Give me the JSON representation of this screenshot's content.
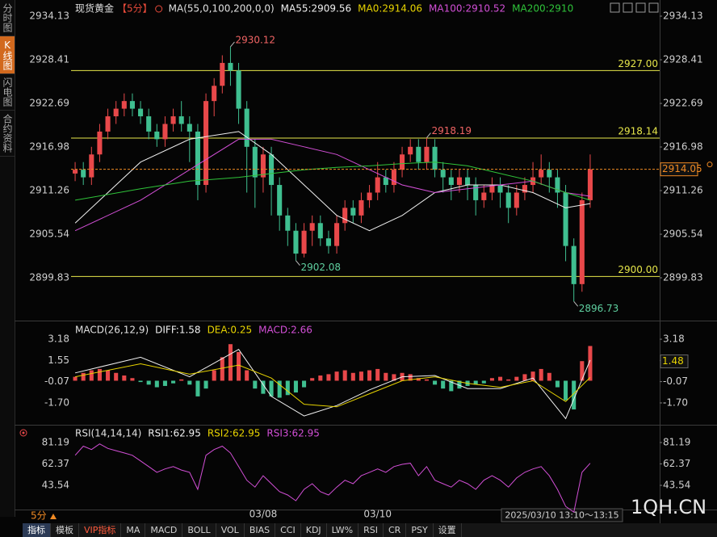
{
  "sidebar": [
    "分时图",
    "K线图",
    "闪电图",
    "合约资料"
  ],
  "toolbar": [
    "指标",
    "模板",
    "VIP指标",
    "MA",
    "MACD",
    "BOLL",
    "VOL",
    "BIAS",
    "CCI",
    "KDJ",
    "LW%",
    "RSI",
    "CR",
    "PSY",
    "设置"
  ],
  "period": "5分",
  "time_range": "2025/03/10 13:10～13:15",
  "watermark": "1QH.CN",
  "chart_data": [
    {
      "type": "candlestick",
      "title": "现货黄金",
      "period_tag": "【5分】",
      "indicator": "MA(55,0,100,200,0,0)",
      "header_items": [
        {
          "label": "MA0:2914.06",
          "color": "#e8d400"
        }
      ],
      "xlim": [
        -0.5,
        71.5
      ],
      "categories": [
        null,
        null,
        null,
        null,
        null,
        null,
        null,
        null,
        null,
        null,
        null,
        null,
        null,
        null,
        null,
        null,
        null,
        null,
        null,
        null,
        null,
        null,
        null,
        "03/08",
        null,
        null,
        null,
        null,
        null,
        null,
        null,
        null,
        null,
        null,
        null,
        null,
        null,
        "03/10",
        null,
        null,
        null,
        null,
        null,
        null,
        null,
        null,
        null,
        null,
        null,
        null,
        null,
        null,
        null,
        null,
        null,
        null,
        null,
        null,
        null,
        null,
        null,
        null,
        null,
        null
      ],
      "open": [
        2913.5,
        2914,
        2913,
        2916,
        2919,
        2921,
        2922,
        2923,
        2922,
        2921,
        2919,
        2918,
        2920,
        2921,
        2920,
        2919,
        2912,
        2923,
        2925,
        2928,
        2927,
        2922,
        2917,
        2913,
        2916,
        2912,
        2908,
        2906,
        2903,
        2906,
        2907,
        2905,
        2904,
        2907,
        2909,
        2908,
        2910,
        2911,
        2913,
        2912,
        2914,
        2916,
        2917,
        2915,
        2917,
        2914,
        2913,
        2912,
        2913,
        2912,
        2910,
        2911,
        2912,
        2911,
        2909,
        2911,
        2912,
        2913,
        2914,
        2913,
        2911,
        2904,
        2899,
        2910
      ],
      "high": [
        2915,
        2915,
        2917,
        2920,
        2922,
        2923,
        2924,
        2924,
        2923,
        2922,
        2920,
        2921,
        2922,
        2923,
        2921,
        2920,
        2924,
        2926,
        2929,
        2930.12,
        2928,
        2923,
        2918,
        2917,
        2917,
        2913,
        2909,
        2907,
        2907,
        2908,
        2908,
        2906,
        2908,
        2910,
        2910,
        2911,
        2912,
        2915,
        2914,
        2915,
        2917,
        2918,
        2918,
        2918.19,
        2918,
        2915,
        2914,
        2914,
        2914,
        2913,
        2912,
        2913,
        2913,
        2912,
        2912,
        2913,
        2915,
        2916,
        2915,
        2914,
        2912,
        2905,
        2911,
        2916
      ],
      "low": [
        2912.5,
        2912,
        2912,
        2915,
        2918,
        2920,
        2921,
        2921,
        2920,
        2918,
        2917,
        2917,
        2919,
        2919,
        2915,
        2910,
        2911,
        2921,
        2924,
        2925,
        2920,
        2911,
        2909,
        2911,
        2908,
        2906,
        2904,
        2902.08,
        2902.5,
        2904,
        2904,
        2903,
        2903,
        2906,
        2907,
        2907,
        2909,
        2910,
        2911,
        2911,
        2913,
        2915,
        2914,
        2914,
        2913,
        2911,
        2910,
        2911,
        2910,
        2908,
        2909,
        2910,
        2909,
        2907,
        2908,
        2910,
        2911,
        2912,
        2911,
        2909,
        2902,
        2896.73,
        2898,
        2909
      ],
      "close": [
        2914,
        2913,
        2916,
        2919,
        2921,
        2922,
        2923,
        2922,
        2921,
        2919,
        2918,
        2920,
        2921,
        2920,
        2919,
        2912,
        2923,
        2925,
        2928,
        2927,
        2922,
        2917,
        2913,
        2916,
        2912,
        2908,
        2906,
        2903,
        2906,
        2907,
        2905,
        2904,
        2907,
        2909,
        2908,
        2910,
        2911,
        2913,
        2912,
        2914,
        2916,
        2917,
        2915,
        2917,
        2914,
        2913,
        2912,
        2913,
        2912,
        2910,
        2911,
        2912,
        2911,
        2909,
        2911,
        2912,
        2913,
        2914,
        2913,
        2911,
        2904,
        2899,
        2910,
        2914.05
      ],
      "up_color": "#e8484a",
      "down_color": "#3fbf90",
      "ylim": [
        2894.43,
        2935.19
      ],
      "yticks": [
        2934.13,
        2928.41,
        2922.69,
        2916.98,
        2911.26,
        2905.54,
        2899.83
      ],
      "series": [
        {
          "name": "MA55:2909.56",
          "color": "#f0f0f0",
          "x": [
            0,
            8,
            14,
            20,
            24,
            28,
            32,
            36,
            40,
            44,
            48,
            52,
            56,
            60,
            63
          ],
          "values": [
            2907,
            2915,
            2918,
            2919,
            2916,
            2912,
            2908,
            2906,
            2908,
            2911,
            2912,
            2912,
            2911,
            2909,
            2909.56
          ]
        },
        {
          "name": "MA100:2910.52",
          "color": "#d24fd6",
          "x": [
            0,
            8,
            14,
            20,
            24,
            28,
            32,
            36,
            40,
            44,
            48,
            52,
            56,
            60,
            63
          ],
          "values": [
            2906,
            2910,
            2914,
            2918,
            2918,
            2917,
            2916,
            2914,
            2912,
            2911,
            2911.5,
            2912,
            2912.5,
            2911,
            2910.52
          ]
        },
        {
          "name": "MA200:2910",
          "color": "#2fc43a",
          "x": [
            0,
            8,
            14,
            20,
            24,
            28,
            32,
            36,
            40,
            44,
            48,
            52,
            56,
            60,
            63
          ],
          "values": [
            2910,
            2911.5,
            2912.5,
            2913,
            2913.5,
            2914,
            2914.3,
            2914.5,
            2914.8,
            2915,
            2914.5,
            2913.5,
            2912.5,
            2911,
            2910
          ]
        }
      ],
      "levels": [
        {
          "value": 2927,
          "label": "2927.00"
        },
        2918.14,
        {
          "value": 2900,
          "label": "2900.00"
        }
      ],
      "level_color": "#e6e64a",
      "last_price_color": "#f08a24"
    },
    {
      "type": "macd",
      "title": "MACD(26,12,9)",
      "xlim": [
        -0.5,
        71.5
      ],
      "ylim": [
        -3.31,
        4.42
      ],
      "yticks": [
        3.18,
        1.55,
        -0.07,
        {
          "value": -1.7,
          "label": "-1.70"
        }
      ],
      "histogram": {
        "name": "MACD:2.66",
        "color": "#d24fd6",
        "up_color": "#e8484a",
        "down_color": "#3fbf90",
        "values": [
          0.3,
          0.6,
          0.8,
          0.9,
          0.8,
          0.6,
          0.4,
          0.2,
          -0.1,
          -0.3,
          -0.5,
          -0.4,
          -0.2,
          0.1,
          -0.3,
          -1.2,
          -0.6,
          0.8,
          1.8,
          2.8,
          2.2,
          0.8,
          -0.6,
          -1.0,
          -1.2,
          -1.3,
          -1.1,
          -0.9,
          -0.5,
          0.2,
          0.4,
          0.5,
          0.7,
          0.8,
          0.6,
          0.7,
          0.8,
          0.9,
          0.6,
          0.5,
          0.6,
          0.5,
          0.2,
          0.1,
          -0.3,
          -0.6,
          -0.8,
          -0.6,
          -0.4,
          -0.3,
          -0.2,
          0.2,
          0.3,
          0.1,
          0.3,
          0.5,
          0.7,
          0.9,
          0.6,
          -0.5,
          -1.5,
          -2.2,
          1.5,
          2.66
        ]
      },
      "series": [
        {
          "name": "DIFF:1.58",
          "color": "#f0f0f0",
          "x": [
            0,
            8,
            14,
            20,
            24,
            28,
            32,
            36,
            40,
            44,
            48,
            52,
            56,
            60,
            63
          ],
          "values": [
            0.6,
            1.8,
            0.3,
            2.4,
            -1.2,
            -2.7,
            -1.9,
            -0.7,
            0.3,
            0.4,
            -0.6,
            -0.6,
            0.2,
            -2.9,
            1.58
          ]
        },
        {
          "name": "DEA:0.25",
          "color": "#e8d400",
          "x": [
            0,
            8,
            14,
            20,
            24,
            28,
            32,
            36,
            40,
            44,
            48,
            52,
            56,
            60,
            63
          ],
          "values": [
            0.3,
            1.3,
            0.5,
            1.2,
            0.2,
            -1.8,
            -2.0,
            -1.0,
            0.0,
            0.3,
            -0.2,
            -0.5,
            0.0,
            -1.6,
            0.25
          ]
        }
      ],
      "cursor_value": 1.48
    },
    {
      "type": "line",
      "title": "RSI(14,14,14)",
      "xlim": [
        -0.5,
        71.5
      ],
      "ylim": [
        22.96,
        95.4
      ],
      "yticks": [
        81.19,
        62.37,
        43.54
      ],
      "legend": [
        {
          "label": "RSI1:62.95",
          "color": "#f0f0f0"
        },
        {
          "label": "RSI2:62.95",
          "color": "#e8d400"
        },
        {
          "label": "RSI3:62.95",
          "color": "#d24fd6"
        }
      ],
      "series": [
        {
          "color": "#d24fd6",
          "values": [
            70,
            78,
            75,
            80,
            76,
            74,
            72,
            70,
            65,
            60,
            55,
            58,
            60,
            57,
            55,
            40,
            70,
            75,
            78,
            72,
            60,
            48,
            42,
            52,
            45,
            38,
            35,
            30,
            40,
            45,
            38,
            35,
            42,
            48,
            45,
            52,
            55,
            58,
            55,
            60,
            62,
            63,
            52,
            60,
            48,
            45,
            42,
            48,
            45,
            40,
            48,
            52,
            48,
            42,
            50,
            55,
            58,
            60,
            52,
            40,
            25,
            20,
            55,
            62.95
          ]
        }
      ]
    }
  ]
}
